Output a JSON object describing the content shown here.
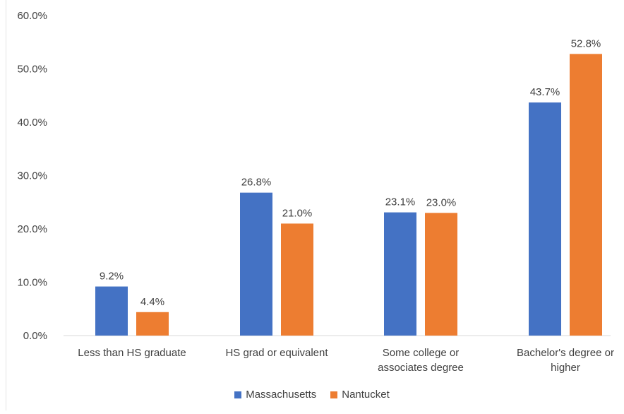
{
  "chart_data": {
    "type": "bar",
    "categories": [
      [
        "Less than HS graduate"
      ],
      [
        "HS grad or equivalent"
      ],
      [
        "Some college or",
        "associates degree"
      ],
      [
        "Bachelor's degree or",
        "higher"
      ]
    ],
    "series": [
      {
        "name": "Massachusetts",
        "color": "#4472C4",
        "values": [
          9.2,
          26.8,
          23.1,
          43.7
        ],
        "labels": [
          "9.2%",
          "26.8%",
          "23.1%",
          "43.7%"
        ]
      },
      {
        "name": "Nantucket",
        "color": "#ED7D31",
        "values": [
          4.4,
          21.0,
          23.0,
          52.8
        ],
        "labels": [
          "4.4%",
          "21.0%",
          "23.0%",
          "52.8%"
        ]
      }
    ],
    "ylim": [
      0,
      60
    ],
    "yticks": [
      0,
      10,
      20,
      30,
      40,
      50,
      60
    ],
    "ytick_labels": [
      "0.0%",
      "10.0%",
      "20.0%",
      "30.0%",
      "40.0%",
      "50.0%",
      "60.0%"
    ],
    "gridlines": false,
    "legend_position": "bottom",
    "title": "",
    "xlabel": "",
    "ylabel": ""
  }
}
